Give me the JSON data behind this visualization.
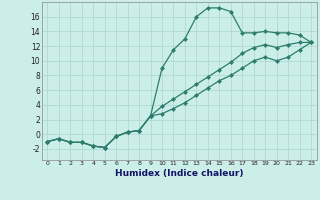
{
  "xlabel": "Humidex (Indice chaleur)",
  "xlim": [
    -0.5,
    23.5
  ],
  "ylim": [
    -3.5,
    18
  ],
  "yticks": [
    -2,
    0,
    2,
    4,
    6,
    8,
    10,
    12,
    14,
    16
  ],
  "xticks": [
    0,
    1,
    2,
    3,
    4,
    5,
    6,
    7,
    8,
    9,
    10,
    11,
    12,
    13,
    14,
    15,
    16,
    17,
    18,
    19,
    20,
    21,
    22,
    23
  ],
  "bg_color": "#cceee8",
  "line_color": "#2d7d6e",
  "grid_color": "#aad4cc",
  "line1_x": [
    0,
    1,
    2,
    3,
    4,
    5,
    6,
    7,
    8,
    9,
    10,
    11,
    12,
    13,
    14,
    15,
    16,
    17,
    18,
    19,
    20,
    21,
    22,
    23
  ],
  "line1_y": [
    -1.0,
    -0.6,
    -1.1,
    -1.1,
    -1.6,
    -1.8,
    -0.3,
    0.3,
    0.5,
    2.5,
    9.0,
    11.5,
    13.0,
    16.0,
    17.2,
    17.2,
    16.7,
    13.8,
    13.8,
    14.0,
    13.8,
    13.8,
    13.5,
    12.5
  ],
  "line2_x": [
    0,
    1,
    2,
    3,
    4,
    5,
    6,
    7,
    8,
    9,
    10,
    11,
    12,
    13,
    14,
    15,
    16,
    17,
    18,
    19,
    20,
    21,
    22,
    23
  ],
  "line2_y": [
    -1.0,
    -0.6,
    -1.1,
    -1.1,
    -1.6,
    -1.8,
    -0.3,
    0.3,
    0.5,
    2.5,
    3.8,
    4.8,
    5.8,
    6.8,
    7.8,
    8.8,
    9.8,
    11.0,
    11.8,
    12.2,
    11.8,
    12.2,
    12.5,
    12.5
  ],
  "line3_x": [
    0,
    1,
    2,
    3,
    4,
    5,
    6,
    7,
    8,
    9,
    10,
    11,
    12,
    13,
    14,
    15,
    16,
    17,
    18,
    19,
    20,
    21,
    22,
    23
  ],
  "line3_y": [
    -1.0,
    -0.6,
    -1.1,
    -1.1,
    -1.6,
    -1.8,
    -0.3,
    0.3,
    0.5,
    2.5,
    2.8,
    3.5,
    4.3,
    5.3,
    6.3,
    7.3,
    8.0,
    9.0,
    10.0,
    10.5,
    10.0,
    10.5,
    11.5,
    12.5
  ]
}
